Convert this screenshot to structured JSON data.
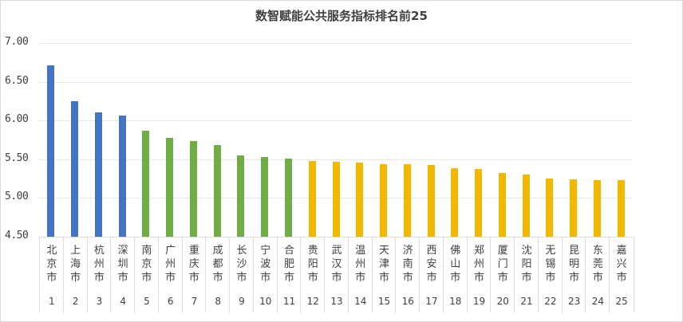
{
  "chart_data": {
    "type": "bar",
    "title": "数智赋能公共服务指标排名前25",
    "xlabel": "",
    "ylabel": "",
    "ylim": [
      4.5,
      7.0
    ],
    "yticks": [
      "7.00",
      "6.50",
      "6.00",
      "5.50",
      "5.00",
      "4.50"
    ],
    "grid": true,
    "legend": null,
    "categories": [
      "北京市",
      "上海市",
      "杭州市",
      "深圳市",
      "南京市",
      "广州市",
      "重庆市",
      "成都市",
      "长沙市",
      "宁波市",
      "合肥市",
      "贵阳市",
      "武汉市",
      "温州市",
      "天津市",
      "济南市",
      "西安市",
      "佛山市",
      "郑州市",
      "厦门市",
      "沈阳市",
      "无锡市",
      "昆明市",
      "东莞市",
      "嘉兴市"
    ],
    "ranks": [
      "1",
      "2",
      "3",
      "4",
      "5",
      "6",
      "7",
      "8",
      "9",
      "10",
      "11",
      "12",
      "13",
      "14",
      "15",
      "16",
      "17",
      "18",
      "19",
      "20",
      "21",
      "22",
      "23",
      "24",
      "25"
    ],
    "values": [
      6.71,
      6.25,
      6.11,
      6.06,
      5.87,
      5.78,
      5.73,
      5.68,
      5.55,
      5.53,
      5.51,
      5.48,
      5.47,
      5.46,
      5.44,
      5.44,
      5.43,
      5.38,
      5.37,
      5.32,
      5.3,
      5.25,
      5.24,
      5.23,
      5.23
    ],
    "bar_colors": [
      "#4472C4",
      "#4472C4",
      "#4472C4",
      "#4472C4",
      "#70AD47",
      "#70AD47",
      "#70AD47",
      "#70AD47",
      "#70AD47",
      "#70AD47",
      "#70AD47",
      "#F2B800",
      "#F2B800",
      "#F2B800",
      "#F2B800",
      "#F2B800",
      "#F2B800",
      "#F2B800",
      "#F2B800",
      "#F2B800",
      "#F2B800",
      "#F2B800",
      "#F2B800",
      "#F2B800",
      "#F2B800"
    ],
    "tiers": [
      {
        "color": "#4472C4",
        "ranks": "1-4"
      },
      {
        "color": "#70AD47",
        "ranks": "5-11"
      },
      {
        "color": "#F2B800",
        "ranks": "12-25"
      }
    ]
  }
}
